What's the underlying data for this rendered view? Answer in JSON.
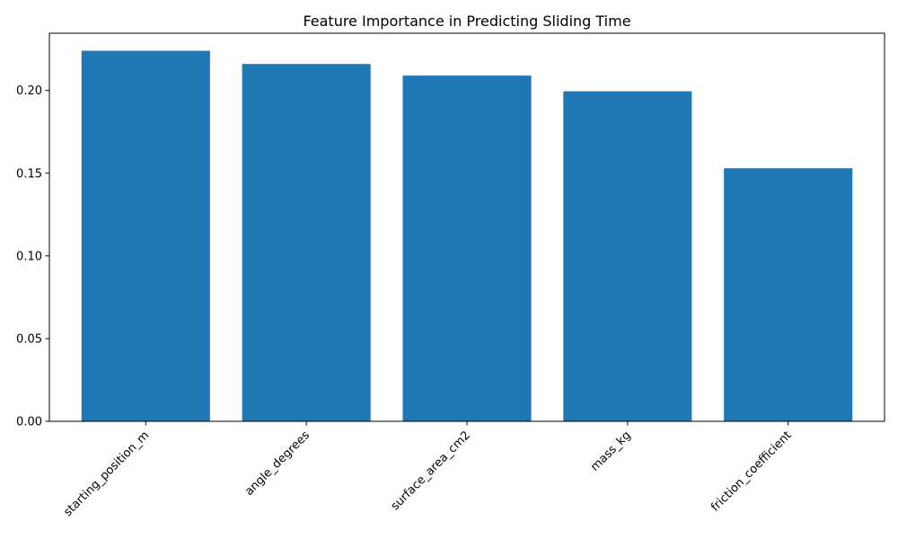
{
  "chart_data": {
    "type": "bar",
    "title": "Feature Importance in Predicting Sliding Time",
    "xlabel": "",
    "ylabel": "",
    "categories": [
      "starting_position_m",
      "angle_degrees",
      "surface_area_cm2",
      "mass_kg",
      "friction_coefficient"
    ],
    "values": [
      0.224,
      0.216,
      0.209,
      0.1995,
      0.153
    ],
    "ylim": [
      0,
      0.2346
    ],
    "yticks": [
      0.0,
      0.05,
      0.1,
      0.15,
      0.2
    ],
    "ytick_labels": [
      "0.00",
      "0.05",
      "0.10",
      "0.15",
      "0.20"
    ],
    "x_tick_rotation_deg": 45,
    "grid": false,
    "bar_color": "#1f77b4"
  }
}
